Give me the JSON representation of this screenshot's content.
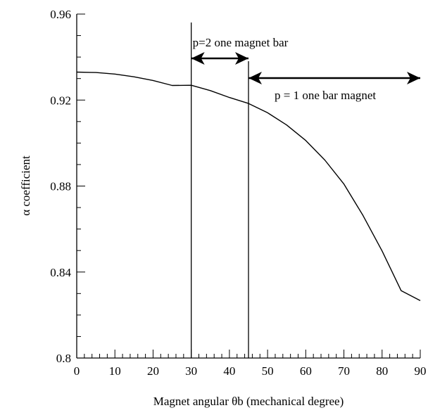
{
  "chart_data": {
    "type": "line",
    "title": "",
    "xlabel": "Magnet angular θb (mechanical degree)",
    "ylabel": "α  coefficient",
    "xlim": [
      0,
      90
    ],
    "ylim": [
      0.8,
      0.96
    ],
    "x_ticks": [
      "0",
      "10",
      "20",
      "30",
      "40",
      "50",
      "60",
      "70",
      "80",
      "90"
    ],
    "y_ticks": [
      "0.8",
      "0.84",
      "0.88",
      "0.92",
      "0.96"
    ],
    "grid": false,
    "legend": "none",
    "series": [
      {
        "x": [
          0,
          5,
          10,
          15,
          20,
          25,
          30,
          35,
          40,
          45,
          50,
          55,
          60,
          65,
          70,
          75,
          80,
          85,
          90
        ],
        "values": [
          0.933,
          0.9328,
          0.9321,
          0.9308,
          0.9291,
          0.9268,
          0.9269,
          0.9244,
          0.9212,
          0.9184,
          0.9141,
          0.9084,
          0.9012,
          0.8921,
          0.8809,
          0.8663,
          0.8498,
          0.8313,
          0.8267
        ]
      }
    ],
    "vlines": [
      30,
      45
    ],
    "annotations": [
      {
        "text": "p=2  one magnet bar",
        "x_from": 30,
        "x_to": 45,
        "arrow": "both"
      },
      {
        "text": "p = 1 one bar magnet",
        "x_from": 45,
        "x_to": 90,
        "arrow": "both"
      }
    ],
    "colors": {
      "line": "#000000",
      "background": "#ffffff"
    }
  }
}
